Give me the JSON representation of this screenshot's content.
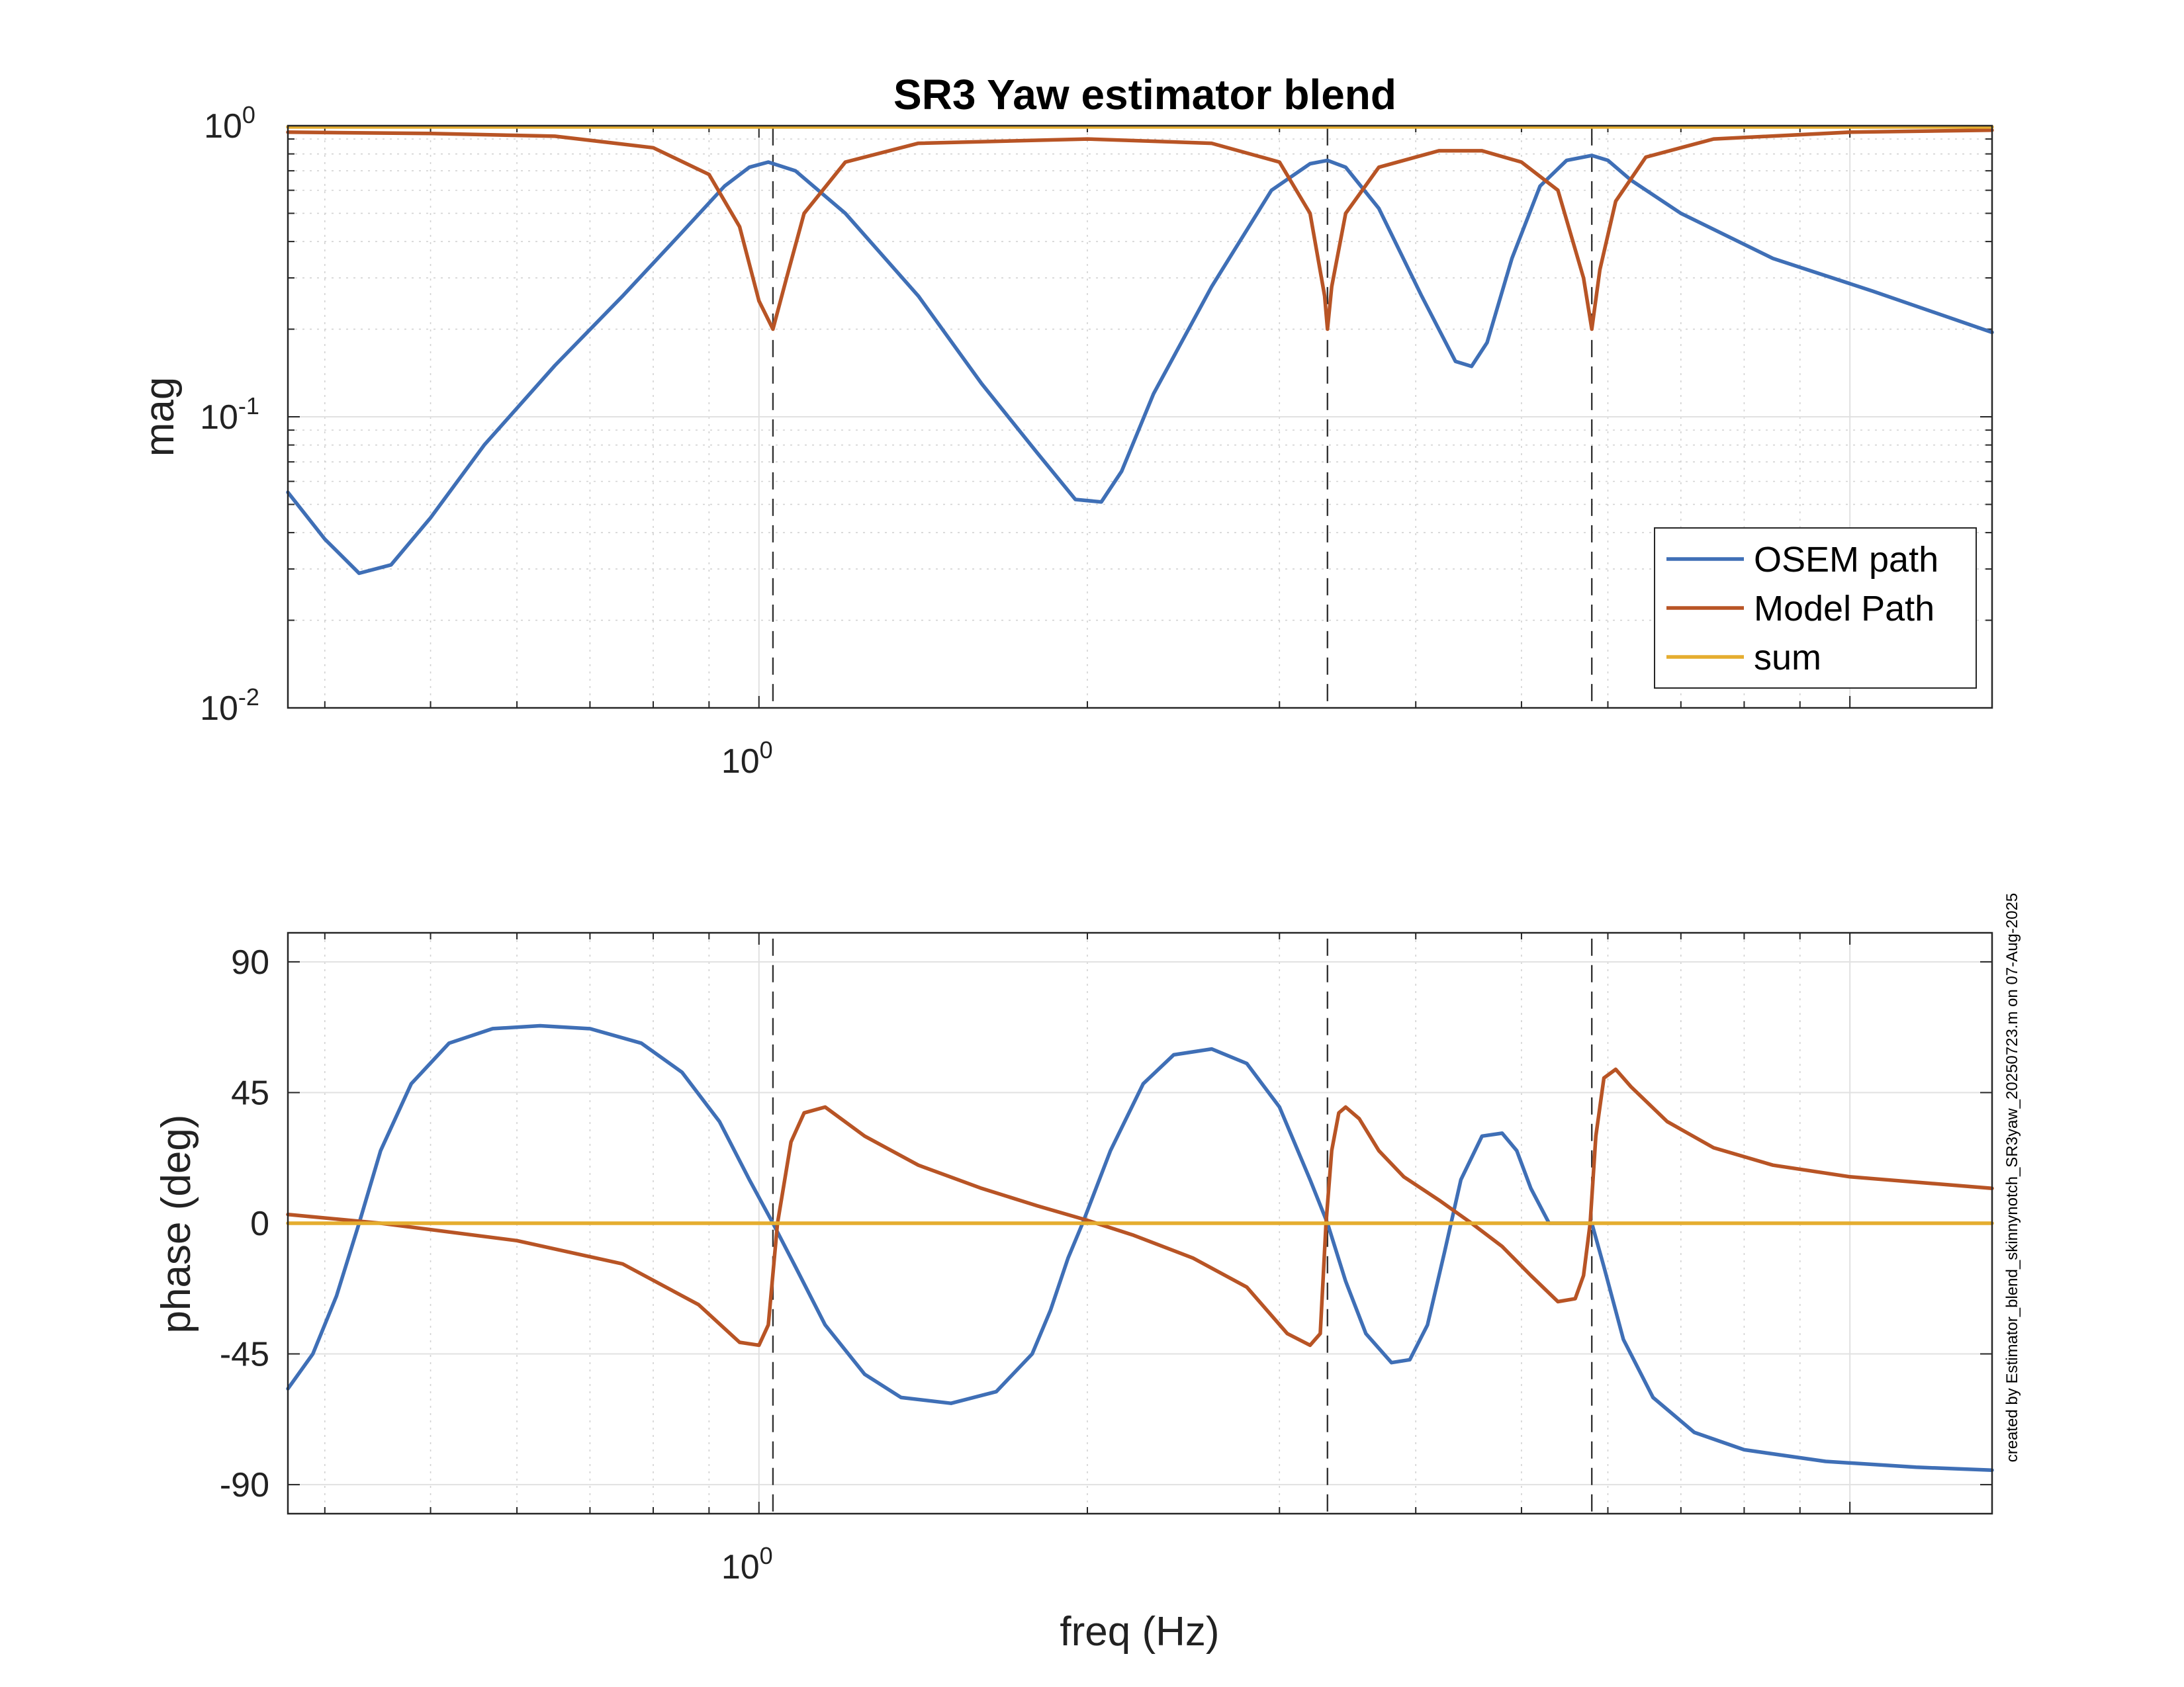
{
  "chart_data": {
    "title": "SR3 Yaw estimator blend",
    "side_note": "created by Estimator_blend_skinnynotch_SR3yaw_20250723.m on 07-Aug-2025",
    "xlabel": "freq (Hz)",
    "x_scale": "log",
    "xlim": [
      0.37,
      13.5
    ],
    "x_ticks": [
      {
        "value": 1,
        "base": "10",
        "exp": "0"
      }
    ],
    "notch_frequencies": [
      1.03,
      3.32,
      5.8
    ],
    "legend": {
      "position": "top-right (upper panel)",
      "entries": [
        "OSEM path",
        "Model Path",
        "sum"
      ]
    },
    "colors": {
      "OSEM path": "#3f6fb6",
      "Model Path": "#b85425",
      "sum": "#e5ad2f"
    },
    "grid": true,
    "panels": [
      {
        "type": "line",
        "ylabel": "mag",
        "y_scale": "log",
        "ylim": [
          0.01,
          1.0
        ],
        "y_ticks": [
          {
            "value": 1,
            "base": "10",
            "exp": "0"
          },
          {
            "value": 0.1,
            "base": "10",
            "exp": "-1"
          },
          {
            "value": 0.01,
            "base": "10",
            "exp": "-2"
          }
        ],
        "series": [
          {
            "name": "OSEM path",
            "x": [
              0.37,
              0.4,
              0.43,
              0.46,
              0.5,
              0.56,
              0.65,
              0.75,
              0.85,
              0.93,
              0.98,
              1.02,
              1.08,
              1.2,
              1.4,
              1.6,
              1.8,
              1.95,
              2.06,
              2.15,
              2.3,
              2.6,
              2.95,
              3.2,
              3.32,
              3.45,
              3.7,
              4.05,
              4.35,
              4.5,
              4.65,
              4.9,
              5.2,
              5.5,
              5.8,
              6.0,
              6.3,
              7.0,
              8.5,
              10.5,
              13.5
            ],
            "y": [
              0.055,
              0.038,
              0.029,
              0.031,
              0.045,
              0.08,
              0.15,
              0.26,
              0.43,
              0.62,
              0.72,
              0.75,
              0.7,
              0.5,
              0.26,
              0.13,
              0.075,
              0.052,
              0.051,
              0.065,
              0.12,
              0.28,
              0.6,
              0.74,
              0.76,
              0.72,
              0.52,
              0.26,
              0.155,
              0.149,
              0.18,
              0.35,
              0.62,
              0.76,
              0.79,
              0.76,
              0.65,
              0.5,
              0.35,
              0.27,
              0.195
            ]
          },
          {
            "name": "Model Path",
            "x": [
              0.37,
              0.5,
              0.65,
              0.8,
              0.9,
              0.96,
              1.0,
              1.03,
              1.06,
              1.1,
              1.2,
              1.4,
              2.0,
              2.6,
              3.0,
              3.2,
              3.3,
              3.32,
              3.35,
              3.45,
              3.7,
              4.2,
              4.6,
              5.0,
              5.4,
              5.7,
              5.8,
              5.9,
              6.1,
              6.5,
              7.5,
              10.0,
              13.5
            ],
            "y": [
              0.95,
              0.94,
              0.92,
              0.84,
              0.68,
              0.45,
              0.25,
              0.2,
              0.3,
              0.5,
              0.75,
              0.87,
              0.9,
              0.87,
              0.75,
              0.5,
              0.26,
              0.2,
              0.28,
              0.5,
              0.72,
              0.82,
              0.82,
              0.75,
              0.6,
              0.3,
              0.2,
              0.32,
              0.55,
              0.78,
              0.9,
              0.95,
              0.965
            ]
          },
          {
            "name": "sum",
            "x": [
              0.37,
              13.5
            ],
            "y": [
              0.99,
              0.99
            ]
          }
        ]
      },
      {
        "type": "line",
        "ylabel": "phase (deg)",
        "y_scale": "linear",
        "ylim": [
          -100,
          100
        ],
        "y_ticks": [
          90,
          45,
          0,
          -45,
          -90
        ],
        "series": [
          {
            "name": "OSEM path",
            "x": [
              0.37,
              0.39,
              0.41,
              0.43,
              0.45,
              0.48,
              0.52,
              0.57,
              0.63,
              0.7,
              0.78,
              0.85,
              0.92,
              0.98,
              1.03,
              1.08,
              1.15,
              1.25,
              1.35,
              1.5,
              1.65,
              1.78,
              1.85,
              1.92,
              1.98,
              2.1,
              2.25,
              2.4,
              2.6,
              2.8,
              3.0,
              3.2,
              3.32,
              3.45,
              3.6,
              3.8,
              3.95,
              4.1,
              4.25,
              4.4,
              4.6,
              4.8,
              4.95,
              5.1,
              5.3,
              5.5,
              5.7,
              5.8,
              5.95,
              6.2,
              6.6,
              7.2,
              8.0,
              9.5,
              11.5,
              13.5
            ],
            "y": [
              -57,
              -45,
              -25,
              0,
              25,
              48,
              62,
              67,
              68,
              67,
              62,
              52,
              35,
              15,
              0,
              -15,
              -35,
              -52,
              -60,
              -62,
              -58,
              -45,
              -30,
              -12,
              0,
              25,
              48,
              58,
              60,
              55,
              40,
              15,
              0,
              -20,
              -38,
              -48,
              -47,
              -35,
              -10,
              15,
              30,
              31,
              25,
              12,
              0,
              0,
              0,
              0,
              -15,
              -40,
              -60,
              -72,
              -78,
              -82,
              -84,
              -85
            ]
          },
          {
            "name": "Model Path",
            "x": [
              0.37,
              0.45,
              0.6,
              0.75,
              0.88,
              0.96,
              1.0,
              1.02,
              1.04,
              1.07,
              1.1,
              1.15,
              1.25,
              1.4,
              1.6,
              1.8,
              2.0,
              2.2,
              2.5,
              2.8,
              3.05,
              3.2,
              3.27,
              3.31,
              3.35,
              3.4,
              3.45,
              3.55,
              3.7,
              3.9,
              4.2,
              4.5,
              4.8,
              5.1,
              5.4,
              5.6,
              5.7,
              5.78,
              5.85,
              5.95,
              6.1,
              6.3,
              6.8,
              7.5,
              8.5,
              10.0,
              13.5
            ],
            "y": [
              3,
              0,
              -6,
              -14,
              -28,
              -41,
              -42,
              -35,
              0,
              28,
              38,
              40,
              30,
              20,
              12,
              6,
              1,
              -4,
              -12,
              -22,
              -38,
              -42,
              -38,
              0,
              25,
              38,
              40,
              36,
              25,
              16,
              8,
              0,
              -8,
              -18,
              -27,
              -26,
              -18,
              0,
              30,
              50,
              53,
              47,
              35,
              26,
              20,
              16,
              12
            ]
          },
          {
            "name": "sum",
            "x": [
              0.37,
              13.5
            ],
            "y": [
              0,
              0
            ]
          }
        ]
      }
    ]
  }
}
